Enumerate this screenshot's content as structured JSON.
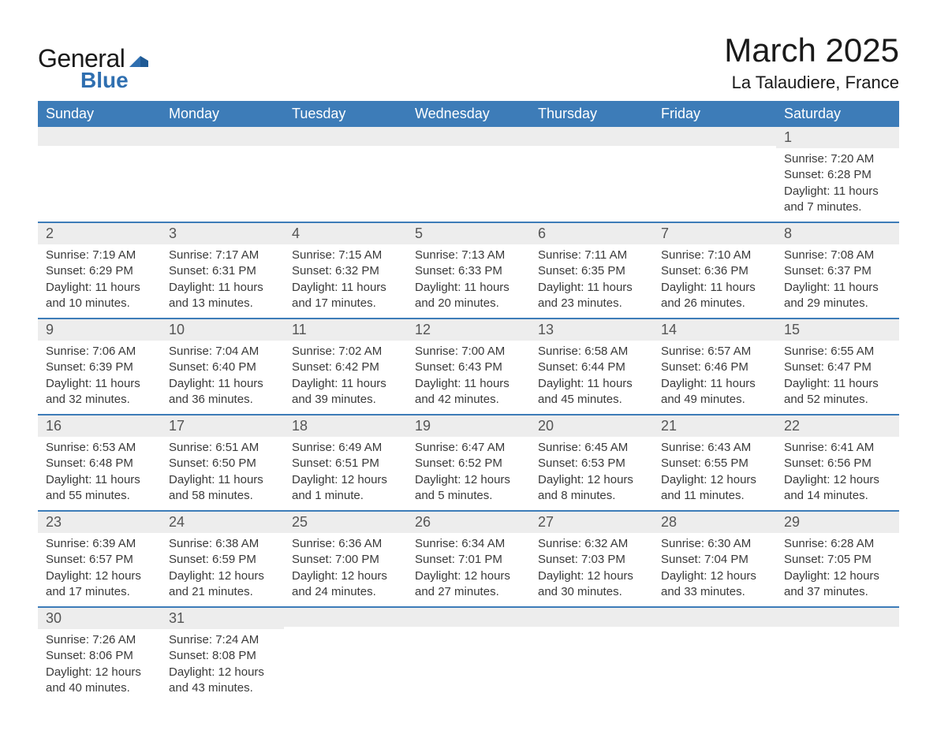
{
  "logo": {
    "word1": "General",
    "word2": "Blue"
  },
  "title": "March 2025",
  "location": "La Talaudiere, France",
  "colors": {
    "header_bg": "#3d7cb8",
    "header_text": "#ffffff",
    "row_border": "#3d7cb8",
    "daynum_bg": "#ededed",
    "body_text": "#3a3a3a",
    "logo_blue": "#2f6fb0"
  },
  "dayNames": [
    "Sunday",
    "Monday",
    "Tuesday",
    "Wednesday",
    "Thursday",
    "Friday",
    "Saturday"
  ],
  "weeks": [
    [
      {
        "num": "",
        "sunrise": "",
        "sunset": "",
        "daylight": ""
      },
      {
        "num": "",
        "sunrise": "",
        "sunset": "",
        "daylight": ""
      },
      {
        "num": "",
        "sunrise": "",
        "sunset": "",
        "daylight": ""
      },
      {
        "num": "",
        "sunrise": "",
        "sunset": "",
        "daylight": ""
      },
      {
        "num": "",
        "sunrise": "",
        "sunset": "",
        "daylight": ""
      },
      {
        "num": "",
        "sunrise": "",
        "sunset": "",
        "daylight": ""
      },
      {
        "num": "1",
        "sunrise": "Sunrise: 7:20 AM",
        "sunset": "Sunset: 6:28 PM",
        "daylight": "Daylight: 11 hours and 7 minutes."
      }
    ],
    [
      {
        "num": "2",
        "sunrise": "Sunrise: 7:19 AM",
        "sunset": "Sunset: 6:29 PM",
        "daylight": "Daylight: 11 hours and 10 minutes."
      },
      {
        "num": "3",
        "sunrise": "Sunrise: 7:17 AM",
        "sunset": "Sunset: 6:31 PM",
        "daylight": "Daylight: 11 hours and 13 minutes."
      },
      {
        "num": "4",
        "sunrise": "Sunrise: 7:15 AM",
        "sunset": "Sunset: 6:32 PM",
        "daylight": "Daylight: 11 hours and 17 minutes."
      },
      {
        "num": "5",
        "sunrise": "Sunrise: 7:13 AM",
        "sunset": "Sunset: 6:33 PM",
        "daylight": "Daylight: 11 hours and 20 minutes."
      },
      {
        "num": "6",
        "sunrise": "Sunrise: 7:11 AM",
        "sunset": "Sunset: 6:35 PM",
        "daylight": "Daylight: 11 hours and 23 minutes."
      },
      {
        "num": "7",
        "sunrise": "Sunrise: 7:10 AM",
        "sunset": "Sunset: 6:36 PM",
        "daylight": "Daylight: 11 hours and 26 minutes."
      },
      {
        "num": "8",
        "sunrise": "Sunrise: 7:08 AM",
        "sunset": "Sunset: 6:37 PM",
        "daylight": "Daylight: 11 hours and 29 minutes."
      }
    ],
    [
      {
        "num": "9",
        "sunrise": "Sunrise: 7:06 AM",
        "sunset": "Sunset: 6:39 PM",
        "daylight": "Daylight: 11 hours and 32 minutes."
      },
      {
        "num": "10",
        "sunrise": "Sunrise: 7:04 AM",
        "sunset": "Sunset: 6:40 PM",
        "daylight": "Daylight: 11 hours and 36 minutes."
      },
      {
        "num": "11",
        "sunrise": "Sunrise: 7:02 AM",
        "sunset": "Sunset: 6:42 PM",
        "daylight": "Daylight: 11 hours and 39 minutes."
      },
      {
        "num": "12",
        "sunrise": "Sunrise: 7:00 AM",
        "sunset": "Sunset: 6:43 PM",
        "daylight": "Daylight: 11 hours and 42 minutes."
      },
      {
        "num": "13",
        "sunrise": "Sunrise: 6:58 AM",
        "sunset": "Sunset: 6:44 PM",
        "daylight": "Daylight: 11 hours and 45 minutes."
      },
      {
        "num": "14",
        "sunrise": "Sunrise: 6:57 AM",
        "sunset": "Sunset: 6:46 PM",
        "daylight": "Daylight: 11 hours and 49 minutes."
      },
      {
        "num": "15",
        "sunrise": "Sunrise: 6:55 AM",
        "sunset": "Sunset: 6:47 PM",
        "daylight": "Daylight: 11 hours and 52 minutes."
      }
    ],
    [
      {
        "num": "16",
        "sunrise": "Sunrise: 6:53 AM",
        "sunset": "Sunset: 6:48 PM",
        "daylight": "Daylight: 11 hours and 55 minutes."
      },
      {
        "num": "17",
        "sunrise": "Sunrise: 6:51 AM",
        "sunset": "Sunset: 6:50 PM",
        "daylight": "Daylight: 11 hours and 58 minutes."
      },
      {
        "num": "18",
        "sunrise": "Sunrise: 6:49 AM",
        "sunset": "Sunset: 6:51 PM",
        "daylight": "Daylight: 12 hours and 1 minute."
      },
      {
        "num": "19",
        "sunrise": "Sunrise: 6:47 AM",
        "sunset": "Sunset: 6:52 PM",
        "daylight": "Daylight: 12 hours and 5 minutes."
      },
      {
        "num": "20",
        "sunrise": "Sunrise: 6:45 AM",
        "sunset": "Sunset: 6:53 PM",
        "daylight": "Daylight: 12 hours and 8 minutes."
      },
      {
        "num": "21",
        "sunrise": "Sunrise: 6:43 AM",
        "sunset": "Sunset: 6:55 PM",
        "daylight": "Daylight: 12 hours and 11 minutes."
      },
      {
        "num": "22",
        "sunrise": "Sunrise: 6:41 AM",
        "sunset": "Sunset: 6:56 PM",
        "daylight": "Daylight: 12 hours and 14 minutes."
      }
    ],
    [
      {
        "num": "23",
        "sunrise": "Sunrise: 6:39 AM",
        "sunset": "Sunset: 6:57 PM",
        "daylight": "Daylight: 12 hours and 17 minutes."
      },
      {
        "num": "24",
        "sunrise": "Sunrise: 6:38 AM",
        "sunset": "Sunset: 6:59 PM",
        "daylight": "Daylight: 12 hours and 21 minutes."
      },
      {
        "num": "25",
        "sunrise": "Sunrise: 6:36 AM",
        "sunset": "Sunset: 7:00 PM",
        "daylight": "Daylight: 12 hours and 24 minutes."
      },
      {
        "num": "26",
        "sunrise": "Sunrise: 6:34 AM",
        "sunset": "Sunset: 7:01 PM",
        "daylight": "Daylight: 12 hours and 27 minutes."
      },
      {
        "num": "27",
        "sunrise": "Sunrise: 6:32 AM",
        "sunset": "Sunset: 7:03 PM",
        "daylight": "Daylight: 12 hours and 30 minutes."
      },
      {
        "num": "28",
        "sunrise": "Sunrise: 6:30 AM",
        "sunset": "Sunset: 7:04 PM",
        "daylight": "Daylight: 12 hours and 33 minutes."
      },
      {
        "num": "29",
        "sunrise": "Sunrise: 6:28 AM",
        "sunset": "Sunset: 7:05 PM",
        "daylight": "Daylight: 12 hours and 37 minutes."
      }
    ],
    [
      {
        "num": "30",
        "sunrise": "Sunrise: 7:26 AM",
        "sunset": "Sunset: 8:06 PM",
        "daylight": "Daylight: 12 hours and 40 minutes."
      },
      {
        "num": "31",
        "sunrise": "Sunrise: 7:24 AM",
        "sunset": "Sunset: 8:08 PM",
        "daylight": "Daylight: 12 hours and 43 minutes."
      },
      {
        "num": "",
        "sunrise": "",
        "sunset": "",
        "daylight": ""
      },
      {
        "num": "",
        "sunrise": "",
        "sunset": "",
        "daylight": ""
      },
      {
        "num": "",
        "sunrise": "",
        "sunset": "",
        "daylight": ""
      },
      {
        "num": "",
        "sunrise": "",
        "sunset": "",
        "daylight": ""
      },
      {
        "num": "",
        "sunrise": "",
        "sunset": "",
        "daylight": ""
      }
    ]
  ]
}
